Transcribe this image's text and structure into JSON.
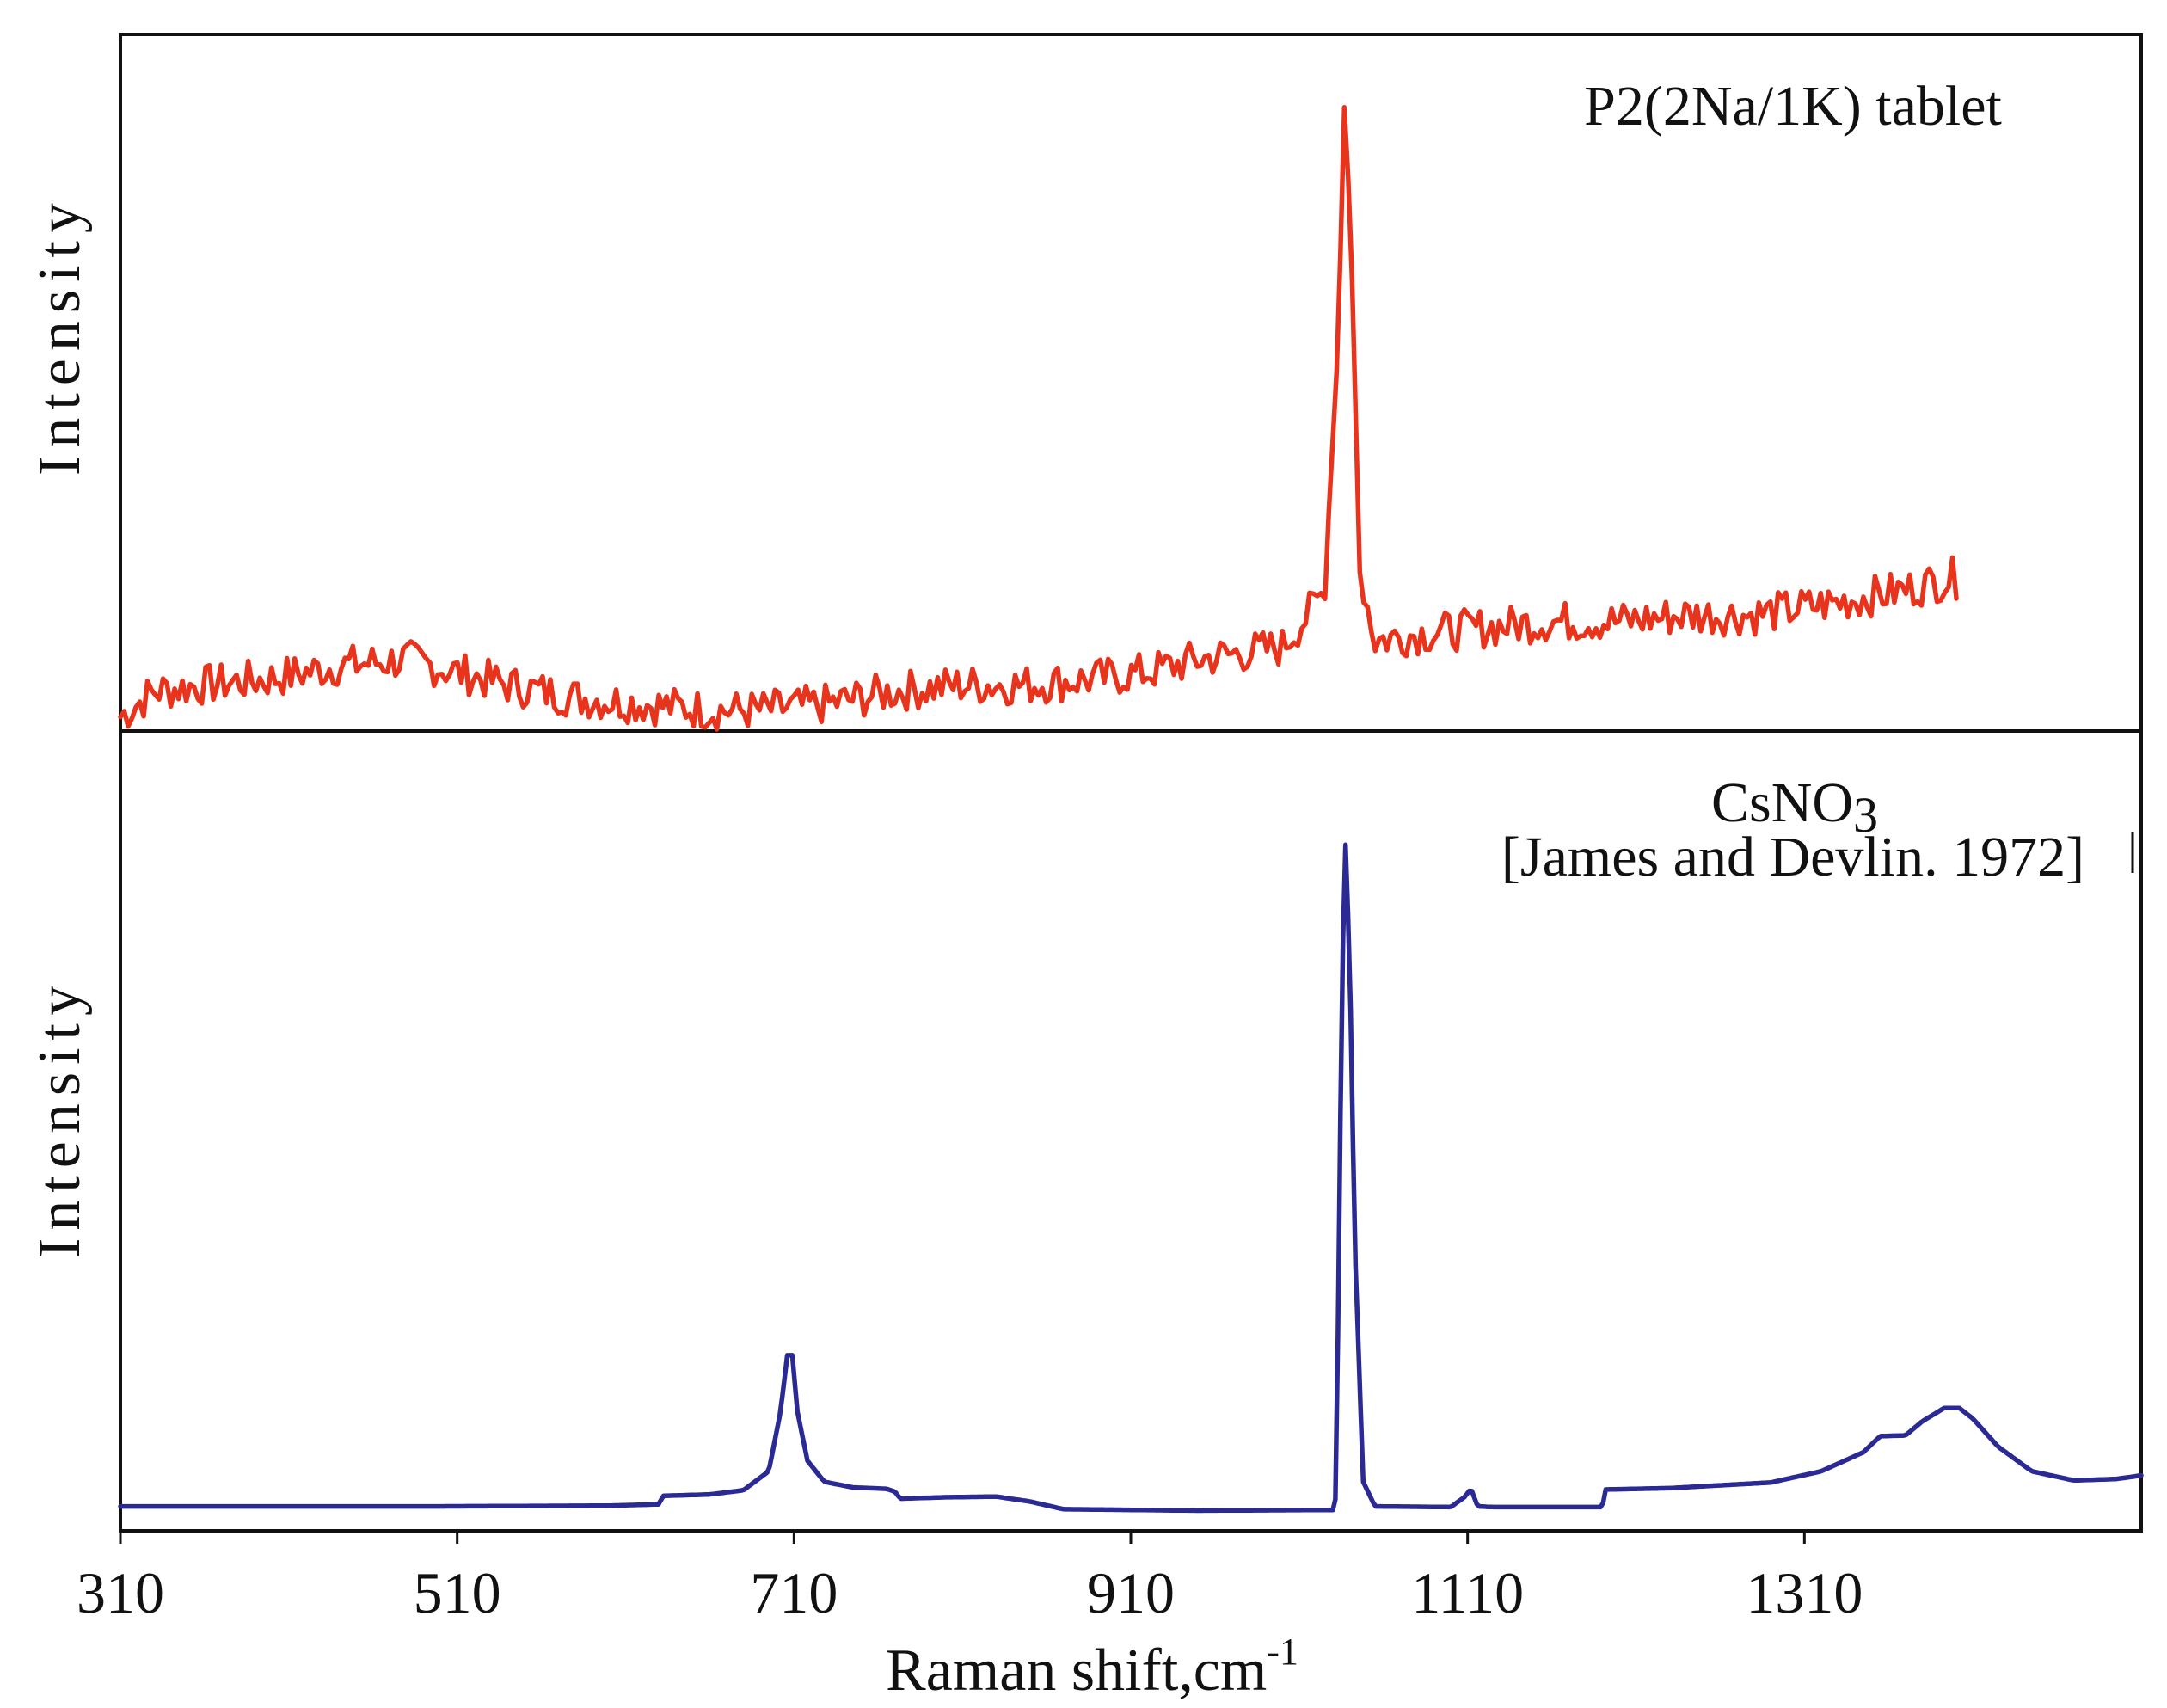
{
  "chart_data": [
    {
      "type": "line",
      "panel": "top",
      "title": "",
      "annotation": "P2(2Na/1K) tablet",
      "ylabel": "Intensity",
      "xlabel": "",
      "xlim": [
        310,
        1510
      ],
      "ylim": [
        0,
        100
      ],
      "series": [
        {
          "name": "P2(2Na/1K) tablet",
          "color": "#e8341c",
          "noise": 3.2,
          "points": [
            [
              310,
              2
            ],
            [
              330,
              6
            ],
            [
              360,
              7
            ],
            [
              400,
              8
            ],
            [
              440,
              10
            ],
            [
              480,
              11
            ],
            [
              510,
              9
            ],
            [
              540,
              7
            ],
            [
              580,
              5
            ],
            [
              620,
              4
            ],
            [
              660,
              3
            ],
            [
              690,
              3
            ],
            [
              730,
              4
            ],
            [
              770,
              6
            ],
            [
              810,
              7
            ],
            [
              850,
              7
            ],
            [
              890,
              8
            ],
            [
              920,
              9
            ],
            [
              950,
              11
            ],
            [
              1000,
              13
            ],
            [
              1015,
              18
            ],
            [
              1025,
              22
            ],
            [
              1033,
              60
            ],
            [
              1037,
              100
            ],
            [
              1041,
              75
            ],
            [
              1046,
              25
            ],
            [
              1055,
              14
            ],
            [
              1080,
              15
            ],
            [
              1120,
              16
            ],
            [
              1160,
              17
            ],
            [
              1200,
              17
            ],
            [
              1240,
              18
            ],
            [
              1280,
              18
            ],
            [
              1330,
              20
            ],
            [
              1370,
              22
            ],
            [
              1400,
              24
            ],
            [
              1402,
              21
            ]
          ]
        }
      ]
    },
    {
      "type": "line",
      "panel": "bottom",
      "title": "",
      "annotation": "CsNO3",
      "annotation_sub": "3",
      "reference": "[James and Devlin. 1972]",
      "ylabel": "Intensity",
      "xlabel": "Raman shift,cm-1",
      "xlim": [
        310,
        1510
      ],
      "ylim": [
        0,
        100
      ],
      "xticks": [
        310,
        510,
        710,
        910,
        1110,
        1310
      ],
      "xtick_labels": [
        "310",
        "510",
        "710",
        "910",
        "1110",
        "1310"
      ],
      "series": [
        {
          "name": "CsNO3",
          "color": "#2b2a95",
          "noise": 0,
          "points": [
            [
              310,
              2.5
            ],
            [
              500,
              2.5
            ],
            [
              600,
              2.6
            ],
            [
              630,
              2.8
            ],
            [
              632,
              4
            ],
            [
              660,
              4.2
            ],
            [
              680,
              4.8
            ],
            [
              695,
              7.5
            ],
            [
              702,
              16
            ],
            [
              706,
              24
            ],
            [
              709,
              24
            ],
            [
              712,
              16
            ],
            [
              718,
              9
            ],
            [
              728,
              6
            ],
            [
              745,
              5.2
            ],
            [
              765,
              5
            ],
            [
              770,
              4.6
            ],
            [
              773,
              3.6
            ],
            [
              800,
              3.8
            ],
            [
              830,
              3.9
            ],
            [
              850,
              3.2
            ],
            [
              870,
              2.1
            ],
            [
              950,
              1.9
            ],
            [
              1030,
              2.0
            ],
            [
              1032,
              4
            ],
            [
              1034,
              50
            ],
            [
              1037,
              100
            ],
            [
              1040,
              80
            ],
            [
              1043,
              40
            ],
            [
              1048,
              6
            ],
            [
              1055,
              2.5
            ],
            [
              1100,
              2.4
            ],
            [
              1108,
              3.8
            ],
            [
              1112,
              5
            ],
            [
              1116,
              2.5
            ],
            [
              1125,
              2.4
            ],
            [
              1190,
              2.4
            ],
            [
              1192,
              4.9
            ],
            [
              1230,
              5.1
            ],
            [
              1290,
              5.9
            ],
            [
              1320,
              7.5
            ],
            [
              1345,
              10.2
            ],
            [
              1355,
              12.5
            ],
            [
              1370,
              12.6
            ],
            [
              1380,
              14.6
            ],
            [
              1393,
              16.5
            ],
            [
              1402,
              16.5
            ],
            [
              1410,
              15
            ],
            [
              1425,
              11
            ],
            [
              1445,
              7.5
            ],
            [
              1470,
              6.2
            ],
            [
              1495,
              6.4
            ],
            [
              1510,
              6.9
            ]
          ]
        }
      ]
    }
  ],
  "axis": {
    "xlabel_main": "Raman shift,cm",
    "xlabel_sup": "-1"
  },
  "colors": {
    "axis": "#111111",
    "background": "#ffffff"
  }
}
